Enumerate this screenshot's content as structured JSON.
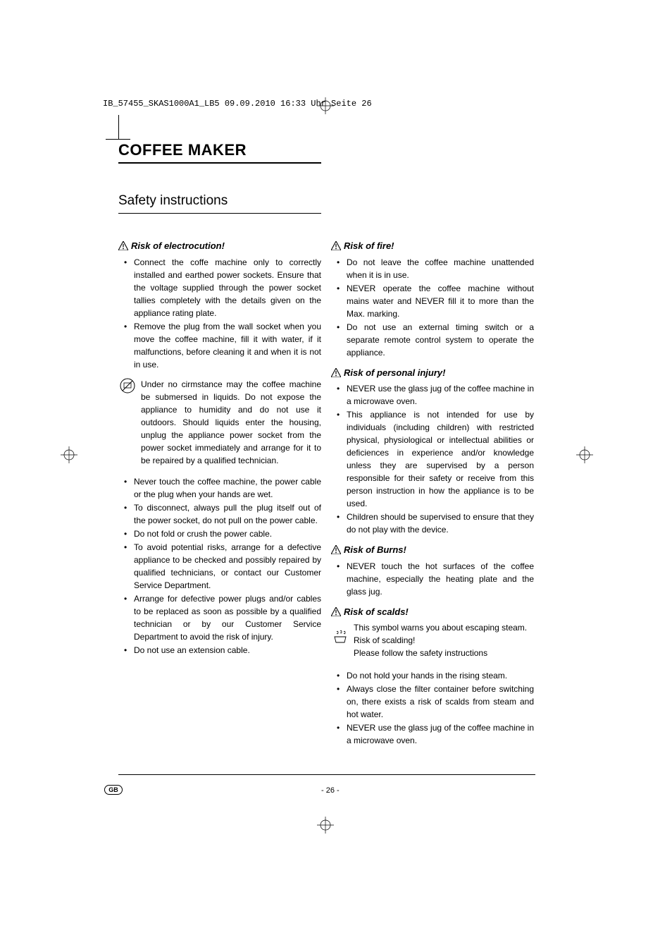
{
  "print_header": "IB_57455_SKAS1000A1_LB5  09.09.2010  16:33 Uhr  Seite 26",
  "main_title": "COFFEE MAKER",
  "section_title": "Safety instructions",
  "left": {
    "h1": "Risk of electrocution!",
    "list1": [
      "Connect the coffe machine only to correctly installed and earthed power sockets. Ensure that the voltage supplied through the power socket tallies completely with the details given on the appliance rating plate.",
      "Remove the plug from the wall socket when you move the coffee machine, fill it with water, if it malfunctions, before cleaning it and when it is not in use."
    ],
    "icon_text": "Under no cirmstance may the coffee machine be submersed in liquids. Do not expose the appliance to humidity and do not use it outdoors. Should liquids enter the housing, unplug the appliance power socket from the power socket immediately and arrange for it to be repaired by a qualified technician.",
    "list2": [
      "Never touch the coffee machine, the power cable or the plug when your hands are wet.",
      "To disconnect, always pull the plug itself out of the power socket, do not pull on the power cable.",
      "Do not fold or crush the power cable.",
      "To avoid potential risks, arrange for a defective appliance to be checked and possibly repaired by qualified technicians, or contact our Customer Service Department.",
      "Arrange for defective power plugs and/or cables to be replaced as soon as possible by a qualified technician or by our Customer Service Department to avoid the risk of injury.",
      "Do not use an extension cable."
    ]
  },
  "right": {
    "h1": "Risk of fire!",
    "list1": [
      "Do not leave the coffee machine unattended when it is in use.",
      "NEVER operate the coffee machine without mains water and NEVER fill it to more than the Max. marking.",
      "Do not use an external timing switch or a separate remote control system to operate the appliance."
    ],
    "h2": "Risk of personal injury!",
    "list2": [
      "NEVER use the glass jug of the coffee machine in a microwave oven.",
      "This appliance is not intended for use by individuals (including children) with restricted physical, physiological or intellectual abilities or deficiences in experience and/or knowledge unless they are supervised by a person responsible for their safety or receive from this person instruction in how the appliance is to be used.",
      "Children should be supervised to ensure that they do not play with the device."
    ],
    "h3": "Risk of Burns!",
    "list3": [
      "NEVER touch the hot surfaces of the coffee machine, especially the heating plate and the glass jug."
    ],
    "h4": "Risk of scalds!",
    "icon_lines": [
      "This symbol warns you about escaping steam.",
      "Risk of scalding!",
      "Please follow the safety instructions"
    ],
    "list4": [
      "Do not hold your hands in the rising steam.",
      "Always close the filter container before switching on, there exists a risk of scalds from steam and hot water.",
      "NEVER use the glass jug of the coffee machine in a microwave oven."
    ]
  },
  "page_number": "- 26 -",
  "lang_badge": "GB",
  "colors": {
    "text": "#000000",
    "bg": "#ffffff"
  }
}
